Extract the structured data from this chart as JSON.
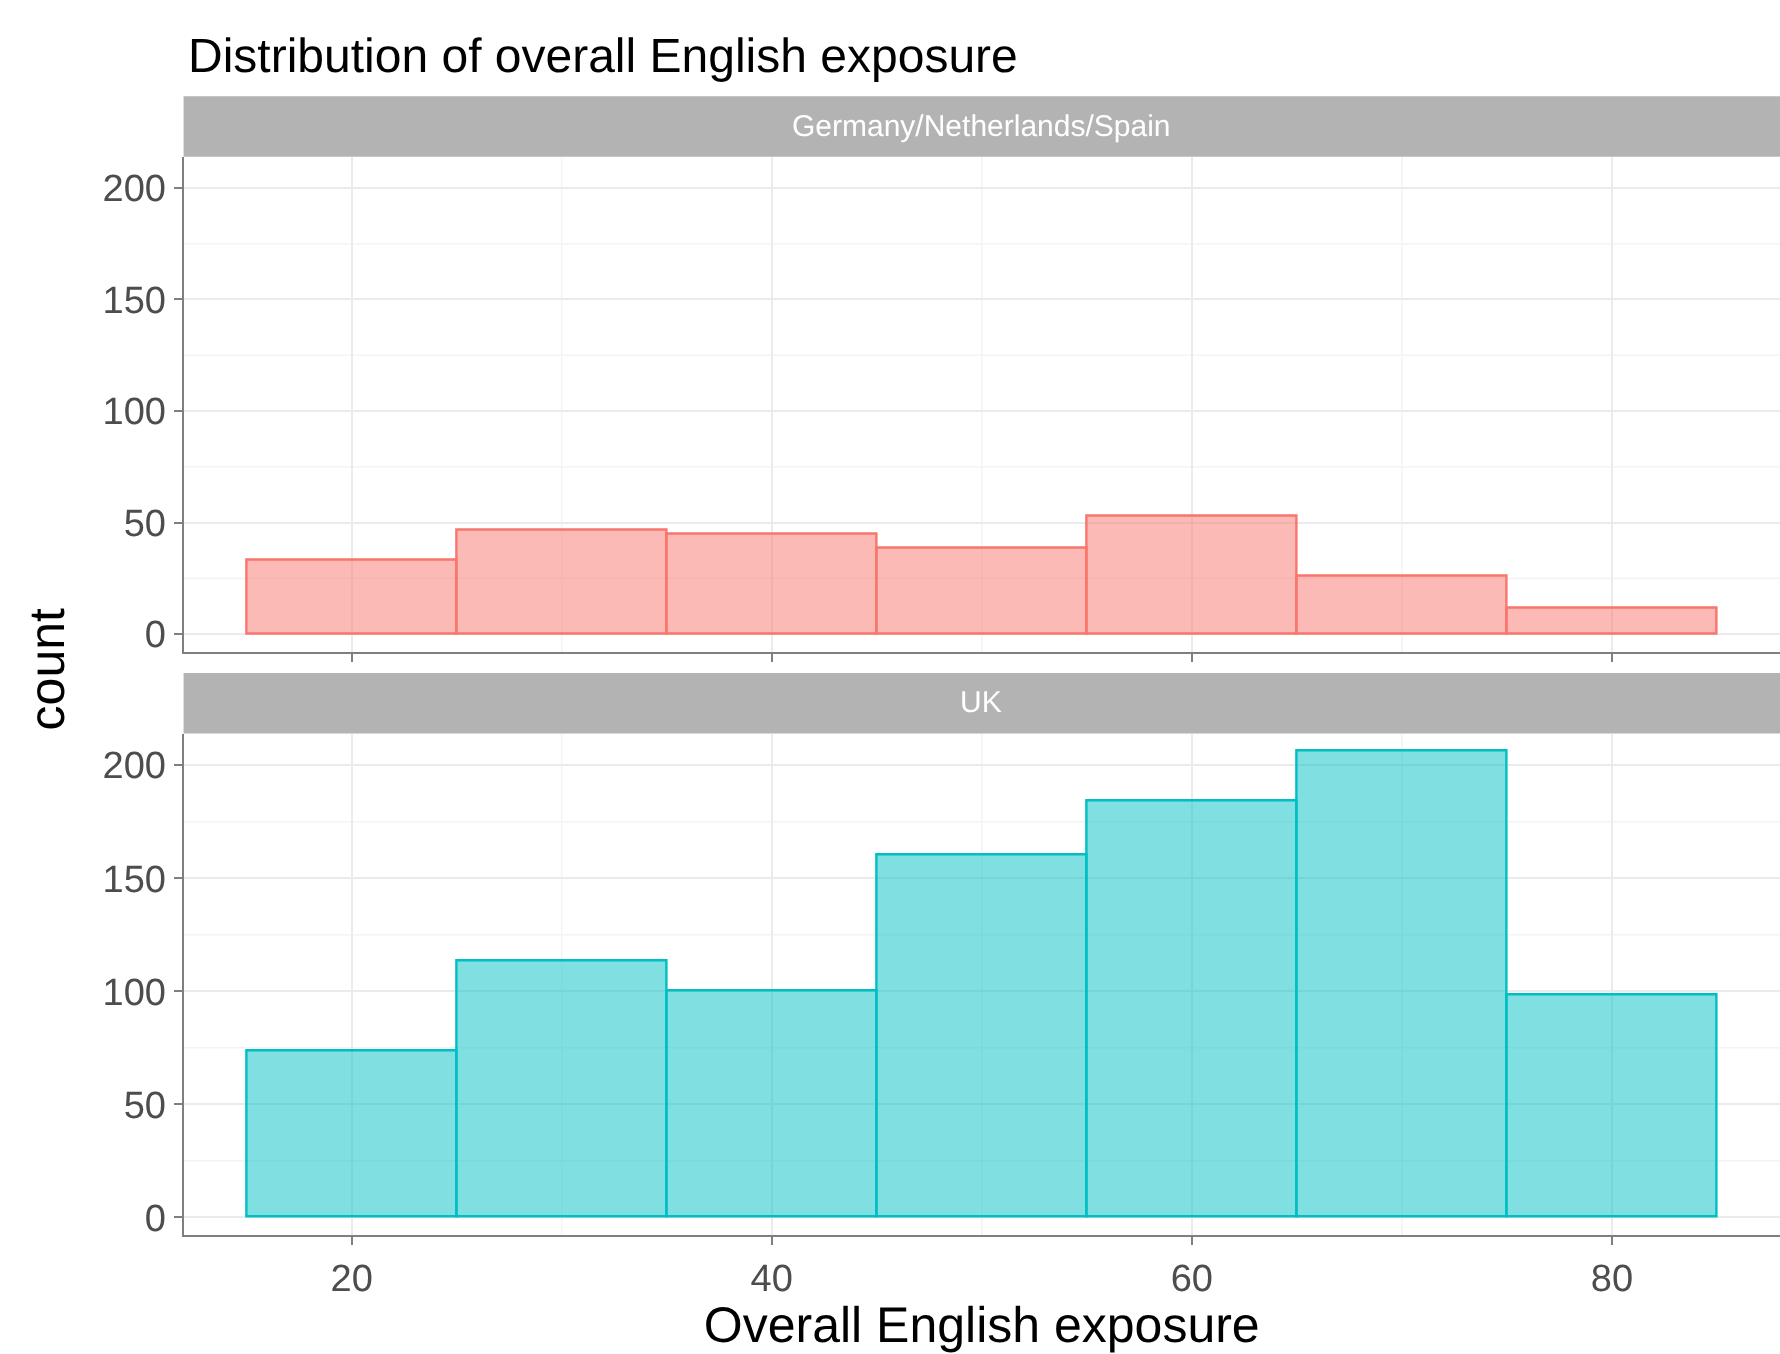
{
  "chart_data": [
    {
      "type": "histogram",
      "title": "Distribution of overall English exposure",
      "subtitle": "Germany/Netherlands/Spain",
      "bins": [
        15,
        25,
        35,
        45,
        55,
        65,
        75,
        85
      ],
      "values": [
        33,
        46,
        45,
        38,
        53,
        26,
        11
      ],
      "color": "#f8766d",
      "xlim": [
        12,
        88
      ],
      "xticks": [
        20,
        40,
        60,
        80
      ],
      "ylim": [
        -8,
        214
      ],
      "yticks": [
        0,
        50,
        100,
        150,
        200
      ],
      "grid": true,
      "tick_labels": "y"
    },
    {
      "type": "histogram",
      "subtitle": "UK",
      "xlabel": "Overall English exposure",
      "ylabel": "count",
      "bins": [
        15,
        25,
        35,
        45,
        55,
        65,
        75,
        85
      ],
      "values": [
        73,
        113,
        100,
        160,
        184,
        206,
        98
      ],
      "color": "#00bfc4",
      "xlim": [
        12,
        88
      ],
      "xticks": [
        20,
        40,
        60,
        80
      ],
      "ylim": [
        -8,
        214
      ],
      "yticks": [
        0,
        50,
        100,
        150,
        200
      ],
      "grid": true
    }
  ]
}
